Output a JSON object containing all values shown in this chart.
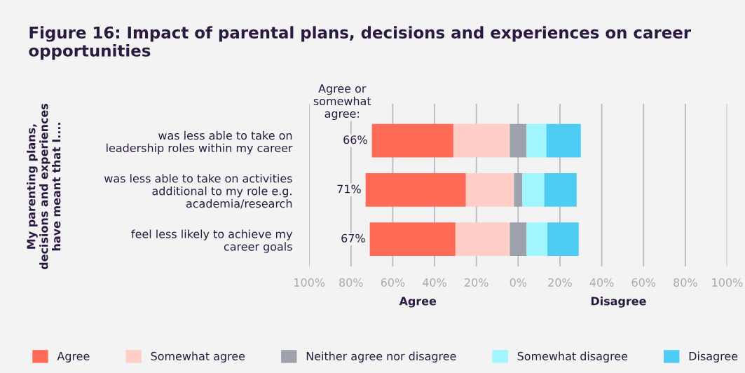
{
  "chart_data": {
    "type": "bar",
    "orientation": "horizontal",
    "title": "Figure 16: Impact of parental plans, decisions and experiences on career opportunities",
    "ylabel": "My parenting plans,\ndecisions and experiences\nhave meant that I....",
    "categories": [
      "was less able to take on\nleadership roles within my career",
      "was less able to take on activities\nadditional to my role e.g.\nacademia/research",
      "feel less likely to achieve my\ncareer goals"
    ],
    "series": [
      {
        "name": "Agree",
        "color": "#ff6b57",
        "base": [
          -70,
          -73,
          -71
        ],
        "values": [
          39,
          48,
          41
        ]
      },
      {
        "name": "Somewhat agree",
        "color": "#ffcfc7",
        "base": [
          -31,
          -25,
          -30
        ],
        "values": [
          27,
          23,
          26
        ]
      },
      {
        "name": "Neither agree nor disagree",
        "color": "#9ea2ad",
        "base": [
          -4,
          -2,
          -4
        ],
        "values": [
          8,
          4,
          8
        ]
      },
      {
        "name": "Somewhat disagree",
        "color": "#a0f5fe",
        "base": [
          4,
          2,
          4
        ],
        "values": [
          9.5,
          10.5,
          10
        ]
      },
      {
        "name": "Disagree",
        "color": "#4dcdf4",
        "base": [
          13.5,
          12.5,
          14
        ],
        "values": [
          16.5,
          15.5,
          15
        ]
      }
    ],
    "annotations": [
      "Agree or\nsomewhat\nagree:",
      "Agree",
      "Disagree",
      {
        "text": "66%",
        "x": -70,
        "y": "was less able to take on\nleadership roles within my career"
      },
      {
        "text": "71%",
        "x": -73,
        "y": "was less able to take on activities\nadditional to my role e.g.\nacademia/research"
      },
      {
        "text": "67%",
        "x": -71,
        "y": "feel less likely to achieve my\ncareer goals"
      }
    ],
    "xlim": [
      -100,
      100
    ],
    "xticks": [
      {
        "value": -100,
        "label": "100%"
      },
      {
        "value": -80,
        "label": "80%"
      },
      {
        "value": -60,
        "label": "60%"
      },
      {
        "value": -40,
        "label": "40%"
      },
      {
        "value": -20,
        "label": "20%"
      },
      {
        "value": 0,
        "label": "0%"
      },
      {
        "value": 20,
        "label": "20%"
      },
      {
        "value": 40,
        "label": "40%"
      },
      {
        "value": 60,
        "label": "60%"
      },
      {
        "value": 80,
        "label": "80%"
      },
      {
        "value": 100,
        "label": "100%"
      }
    ],
    "grid": "x",
    "legend": "bottom"
  }
}
